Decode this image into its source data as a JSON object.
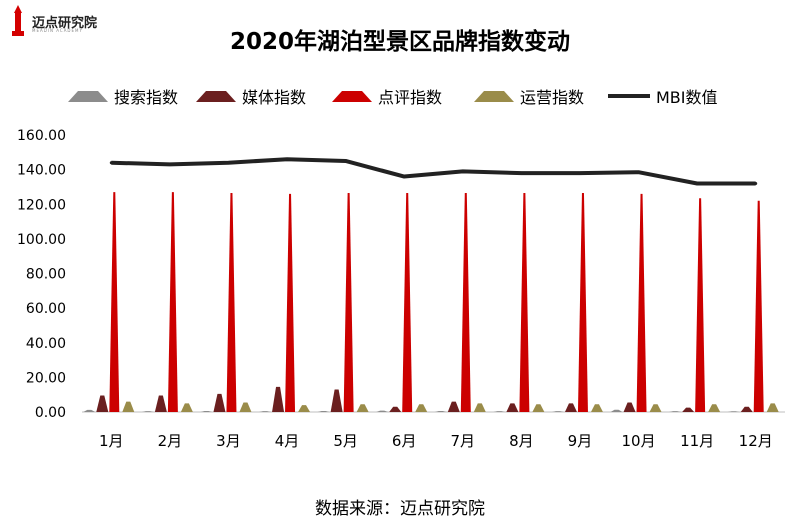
{
  "logo": {
    "name": "迈点研究院",
    "subtitle": "MEADIN ACADEMY"
  },
  "chart_data": {
    "type": "bar",
    "title": "2020年湖泊型景区品牌指数变动",
    "categories": [
      "1月",
      "2月",
      "3月",
      "4月",
      "5月",
      "6月",
      "7月",
      "8月",
      "9月",
      "10月",
      "11月",
      "12月"
    ],
    "ylim": [
      0,
      160
    ],
    "yticks": [
      "0.00",
      "20.00",
      "40.00",
      "60.00",
      "80.00",
      "100.00",
      "120.00",
      "140.00",
      "160.00"
    ],
    "grid": false,
    "legend_position": "top",
    "series": [
      {
        "name": "搜索指数",
        "kind": "bar",
        "color": "#8c8c8c",
        "values": [
          1.2,
          0.5,
          0.6,
          0.5,
          0.6,
          0.8,
          0.6,
          0.5,
          0.5,
          1.3,
          0.5,
          0.4
        ]
      },
      {
        "name": "媒体指数",
        "kind": "bar",
        "color": "#6b1f1f",
        "values": [
          9.5,
          9.5,
          10.5,
          14.5,
          13.0,
          3.0,
          6.0,
          5.0,
          5.0,
          5.5,
          2.5,
          3.0
        ]
      },
      {
        "name": "点评指数",
        "kind": "bar",
        "color": "#cc0000",
        "values": [
          127.0,
          127.0,
          126.5,
          126.0,
          126.5,
          126.5,
          126.5,
          126.5,
          126.5,
          126.0,
          123.5,
          122.0
        ]
      },
      {
        "name": "运营指数",
        "kind": "bar",
        "color": "#9a8c4a",
        "values": [
          6.0,
          5.0,
          5.5,
          4.0,
          4.5,
          4.5,
          5.0,
          4.5,
          4.5,
          4.5,
          4.5,
          5.0
        ]
      },
      {
        "name": "MBI数值",
        "kind": "line",
        "color": "#222222",
        "values": [
          144.0,
          143.0,
          144.0,
          146.0,
          145.0,
          136.0,
          139.0,
          138.0,
          138.0,
          138.5,
          132.0,
          132.0
        ]
      }
    ],
    "source_note": "数据来源：迈点研究院"
  }
}
